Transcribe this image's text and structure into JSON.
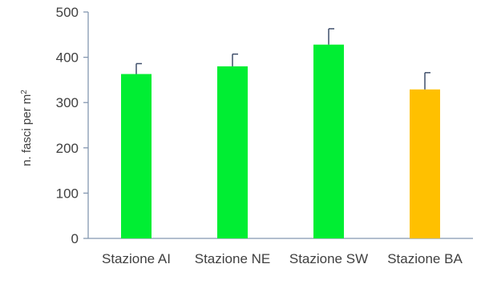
{
  "chart_data": {
    "type": "bar",
    "title": "",
    "xlabel": "",
    "ylabel": "n. fasci per m",
    "ylabel_superscript": "2",
    "ylim": [
      0,
      500
    ],
    "yticks": [
      "0",
      "100",
      "200",
      "300",
      "400",
      "500"
    ],
    "categories": [
      "Stazione AI",
      "Stazione NE",
      "Stazione SW",
      "Stazione BA"
    ],
    "values": [
      363,
      380,
      428,
      329
    ],
    "errors": [
      23,
      27,
      35,
      37
    ],
    "colors": [
      "#00ee33",
      "#00ee33",
      "#00ee33",
      "#ffc000"
    ],
    "grid": false,
    "legend": "none"
  }
}
